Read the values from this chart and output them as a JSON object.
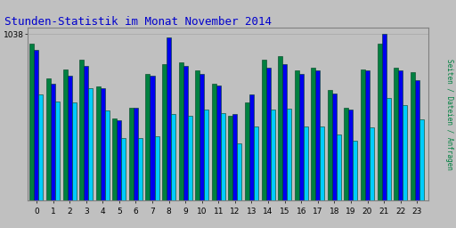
{
  "title": "Stunden-Statistik im Monat November 2014",
  "title_color": "#0000CC",
  "title_fontsize": 9,
  "ylabel_right": "Seiten / Dateien / Anfragen",
  "background_color": "#C0C0C0",
  "plot_bg_color": "#C0C0C0",
  "hours": [
    0,
    1,
    2,
    3,
    4,
    5,
    6,
    7,
    8,
    9,
    10,
    11,
    12,
    13,
    14,
    15,
    16,
    17,
    18,
    19,
    20,
    21,
    22,
    23
  ],
  "green_vals": [
    980,
    760,
    820,
    880,
    710,
    510,
    580,
    790,
    850,
    860,
    810,
    730,
    530,
    610,
    880,
    900,
    810,
    830,
    690,
    580,
    820,
    980,
    830,
    800
  ],
  "blue_vals": [
    940,
    730,
    780,
    840,
    700,
    500,
    580,
    780,
    1020,
    840,
    790,
    720,
    540,
    660,
    830,
    850,
    790,
    810,
    670,
    570,
    810,
    1038,
    810,
    750
  ],
  "cyan_vals": [
    660,
    620,
    610,
    700,
    560,
    390,
    390,
    400,
    540,
    530,
    570,
    545,
    355,
    460,
    565,
    575,
    465,
    465,
    415,
    375,
    455,
    640,
    595,
    505
  ],
  "bar_width": 0.27,
  "green_color": "#008040",
  "blue_color": "#0000EE",
  "cyan_color": "#00CCFF",
  "bar_edge_color": "#004020",
  "ylim": [
    0,
    1080
  ],
  "grid_color": "#AAAAAA",
  "outer_border_color": "#808080",
  "max_val": 1038
}
